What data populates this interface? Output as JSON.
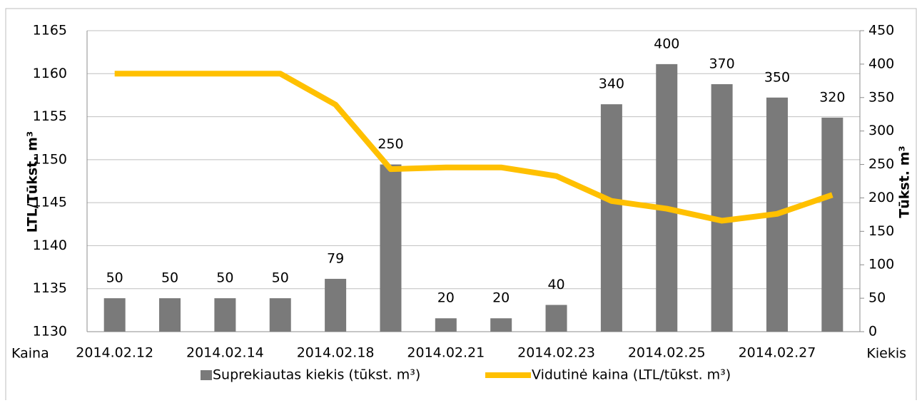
{
  "chart_data": {
    "type": "combo",
    "y_label": "LTL/Tūkst. m³",
    "y2_label": "Tūkst. m³",
    "y_side_label": "Kaina",
    "y2_side_label": "Kiekis",
    "categories": [
      "2014.02.12",
      null,
      "2014.02.14",
      null,
      "2014.02.18",
      null,
      "2014.02.21",
      null,
      "2014.02.23",
      null,
      "2014.02.25",
      null,
      "2014.02.27",
      null
    ],
    "series": [
      {
        "name": "Suprekiautas kiekis (tūkst. m³)",
        "type": "bar",
        "axis": "y2",
        "color": "#7a7a7a",
        "values": [
          50,
          50,
          50,
          50,
          79,
          250,
          20,
          20,
          40,
          340,
          400,
          370,
          350,
          320
        ]
      },
      {
        "name": "Vidutinė kaina (LTL/tūkst. m³)",
        "type": "line",
        "color": "#ffc000",
        "values": [
          1160,
          1160,
          1160,
          1160,
          1156.4,
          1148.9,
          1149.1,
          1149.1,
          1148.1,
          1145.2,
          1144.3,
          1142.9,
          1143.7,
          1145.9
        ]
      }
    ],
    "ylim": [
      1130,
      1165
    ],
    "yticks": [
      1130,
      1135,
      1140,
      1145,
      1150,
      1155,
      1160,
      1165
    ],
    "y2lim": [
      0,
      450
    ],
    "y2ticks": [
      0,
      50,
      100,
      150,
      200,
      250,
      300,
      350,
      400,
      450
    ],
    "grid": true,
    "legend": "bottom"
  }
}
